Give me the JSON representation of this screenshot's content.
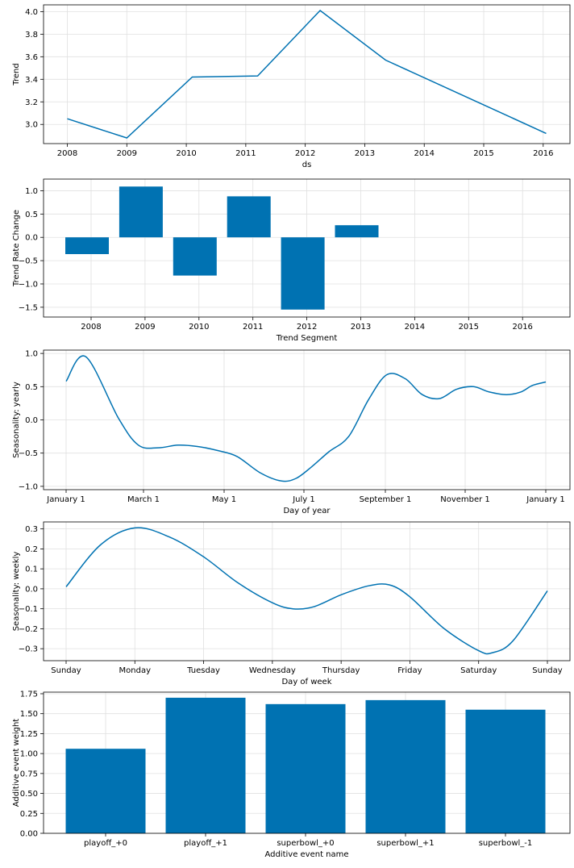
{
  "chart_data": [
    {
      "type": "line",
      "ylabel": "Trend",
      "xlabel": "ds",
      "x_ticks": [
        "2008",
        "2009",
        "2010",
        "2011",
        "2012",
        "2013",
        "2014",
        "2015",
        "2016"
      ],
      "y_ticks": [
        "3.0",
        "3.2",
        "3.4",
        "3.6",
        "3.8",
        "4.0"
      ],
      "xlim": [
        2007.6,
        2016.45
      ],
      "ylim": [
        2.83,
        4.06
      ],
      "grid": true,
      "color": "#0072B2",
      "series": [
        {
          "x": [
            2008.0,
            2009.0,
            2010.1,
            2011.2,
            2012.25,
            2013.35,
            2016.05
          ],
          "y": [
            3.05,
            2.88,
            3.42,
            3.43,
            4.01,
            3.57,
            2.92
          ]
        }
      ]
    },
    {
      "type": "bar",
      "ylabel": "Trend Rate Change",
      "xlabel": "Trend Segment",
      "categories": [
        "2008",
        "2009",
        "2010",
        "2011",
        "2012",
        "2013",
        "2014",
        "2015",
        "2016"
      ],
      "values": [
        -0.36,
        1.09,
        -0.82,
        0.88,
        -1.55,
        0.26,
        0,
        0,
        0
      ],
      "y_ticks": [
        "1.0",
        "0.5",
        "0.0",
        "−0.5",
        "−1.0",
        "−1.5"
      ],
      "ylim": [
        -1.71,
        1.25
      ],
      "grid": true,
      "color": "#0072B2"
    },
    {
      "type": "line",
      "ylabel": "Seasonality: yearly",
      "xlabel": "Day of year",
      "x_ticks": [
        "January 1",
        "March 1",
        "May 1",
        "July 1",
        "September 1",
        "November 1",
        "January 1"
      ],
      "y_ticks": [
        "1.0",
        "0.5",
        "0.0",
        "−0.5",
        "−1.0"
      ],
      "ylim": [
        -1.05,
        1.05
      ],
      "grid": true,
      "color": "#0072B2",
      "series": [
        {
          "x": [
            0,
            15,
            40,
            55,
            70,
            85,
            100,
            115,
            130,
            148,
            164,
            175,
            186,
            200,
            215,
            230,
            244,
            258,
            271,
            284,
            297,
            310,
            322,
            335,
            346,
            355,
            365
          ],
          "y": [
            0.58,
            0.95,
            0.02,
            -0.38,
            -0.42,
            -0.38,
            -0.4,
            -0.46,
            -0.55,
            -0.8,
            -0.92,
            -0.88,
            -0.72,
            -0.48,
            -0.25,
            0.3,
            0.68,
            0.62,
            0.38,
            0.32,
            0.46,
            0.5,
            0.42,
            0.38,
            0.42,
            0.52,
            0.57
          ]
        }
      ]
    },
    {
      "type": "line",
      "ylabel": "Seasonality: weekly",
      "xlabel": "Day of week",
      "x_ticks": [
        "Sunday",
        "Monday",
        "Tuesday",
        "Wednesday",
        "Thursday",
        "Friday",
        "Saturday",
        "Sunday"
      ],
      "y_ticks": [
        "0.3",
        "0.2",
        "0.1",
        "0.0",
        "−0.1",
        "−0.2",
        "−0.3"
      ],
      "ylim": [
        -0.36,
        0.335
      ],
      "grid": true,
      "color": "#0072B2",
      "series": [
        {
          "x": [
            0,
            0.5,
            1.0,
            1.5,
            2.0,
            2.5,
            3.0,
            3.3,
            3.6,
            4.0,
            4.4,
            4.7,
            5.0,
            5.5,
            6.0,
            6.2,
            6.5,
            7.0
          ],
          "y": [
            0.01,
            0.22,
            0.305,
            0.26,
            0.16,
            0.03,
            -0.07,
            -0.1,
            -0.09,
            -0.03,
            0.015,
            0.02,
            -0.04,
            -0.2,
            -0.31,
            -0.32,
            -0.26,
            -0.01
          ]
        }
      ]
    },
    {
      "type": "bar",
      "ylabel": "Additive event weight",
      "xlabel": "Additive event name",
      "categories": [
        "playoff_+0",
        "playoff_+1",
        "superbowl_+0",
        "superbowl_+1",
        "superbowl_-1"
      ],
      "values": [
        1.06,
        1.7,
        1.62,
        1.67,
        1.55
      ],
      "y_ticks": [
        "1.75",
        "1.50",
        "1.25",
        "1.00",
        "0.75",
        "0.50",
        "0.25",
        "0.00"
      ],
      "ylim": [
        0,
        1.77
      ],
      "grid": true,
      "color": "#0072B2"
    }
  ]
}
